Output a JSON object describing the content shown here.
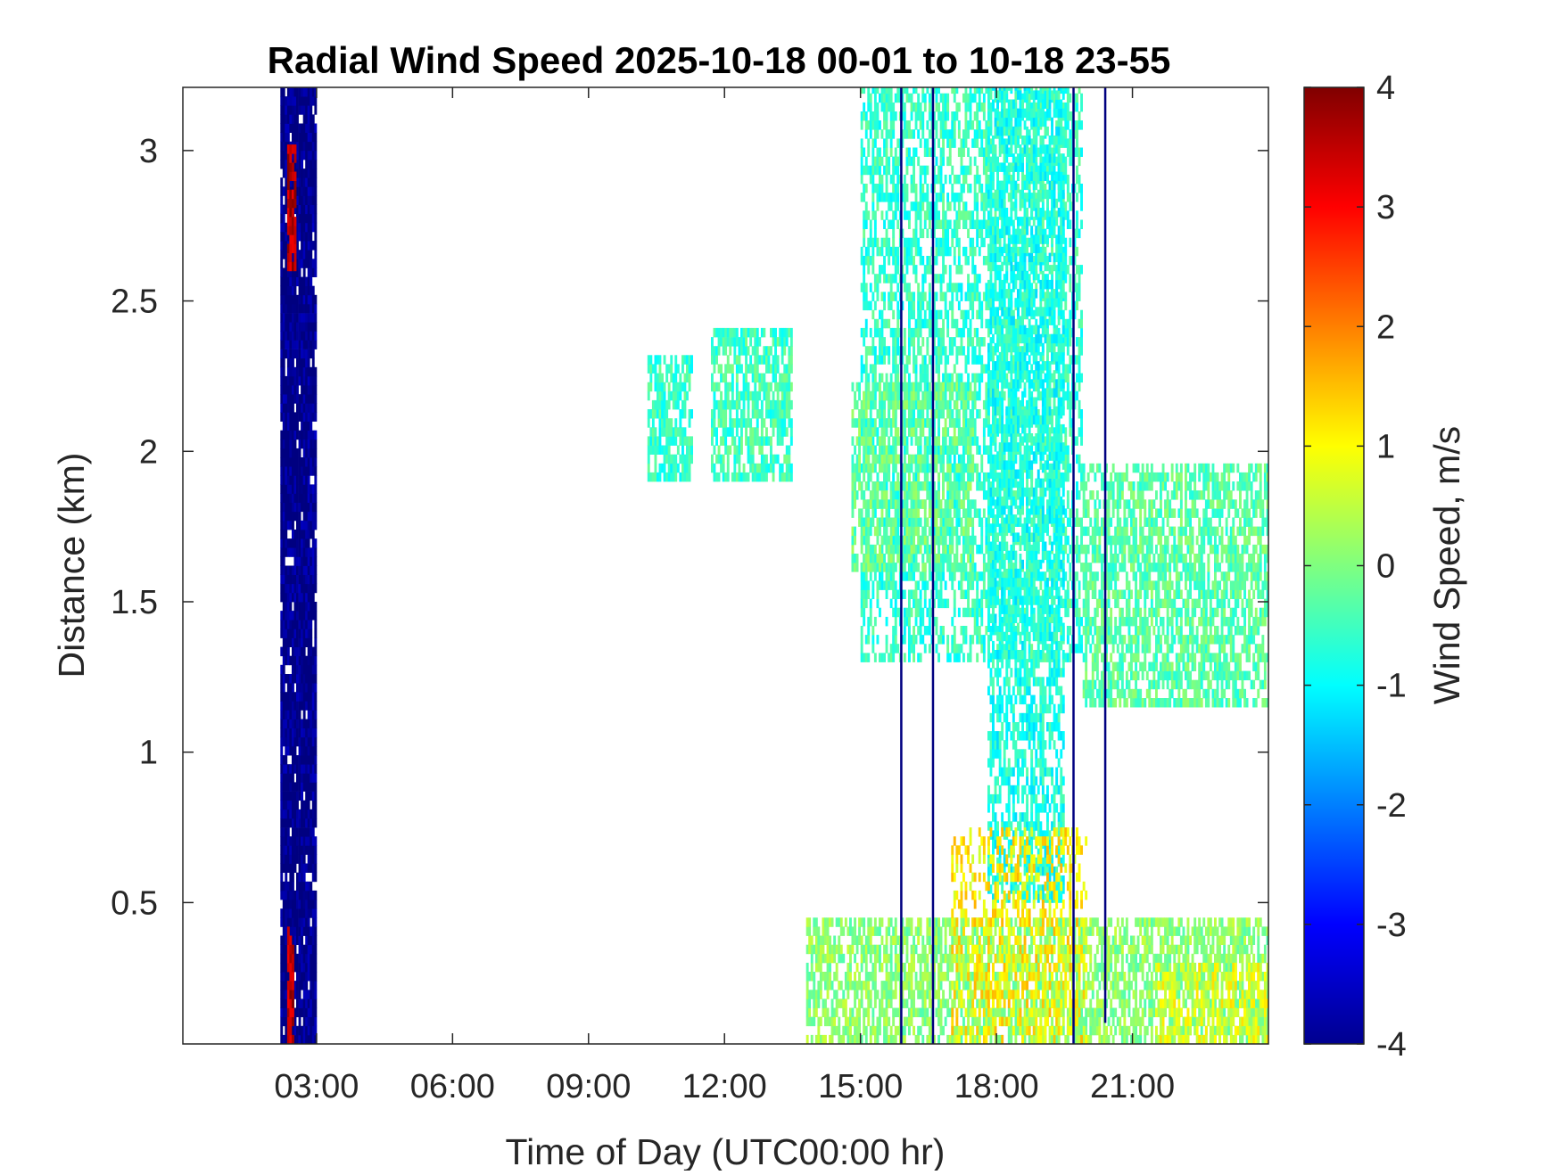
{
  "chart_data": {
    "type": "heatmap",
    "title": "Radial Wind Speed 2025-10-18 00-01 to 10-18 23-55",
    "xlabel": "Time of Day (UTC00:00 hr)",
    "ylabel": "Distance (km)",
    "colorbar_label": "Wind Speed, m/s",
    "xlim": [
      0.05,
      24.0
    ],
    "ylim": [
      0.03,
      3.21
    ],
    "clim": [
      -4,
      4
    ],
    "colormap": "jet",
    "x_ticks": [
      {
        "value": 3,
        "label": "03:00"
      },
      {
        "value": 6,
        "label": "06:00"
      },
      {
        "value": 9,
        "label": "09:00"
      },
      {
        "value": 12,
        "label": "12:00"
      },
      {
        "value": 15,
        "label": "15:00"
      },
      {
        "value": 18,
        "label": "18:00"
      },
      {
        "value": 21,
        "label": "21:00"
      }
    ],
    "y_ticks": [
      {
        "value": 0.5,
        "label": "0.5"
      },
      {
        "value": 1,
        "label": "1"
      },
      {
        "value": 1.5,
        "label": "1.5"
      },
      {
        "value": 2,
        "label": "2"
      },
      {
        "value": 2.5,
        "label": "2.5"
      },
      {
        "value": 3,
        "label": "3"
      }
    ],
    "colorbar_ticks": [
      {
        "value": 4,
        "label": "4"
      },
      {
        "value": 3,
        "label": "3"
      },
      {
        "value": 2,
        "label": "2"
      },
      {
        "value": 1,
        "label": "1"
      },
      {
        "value": 0,
        "label": "0"
      },
      {
        "value": -1,
        "label": "-1"
      },
      {
        "value": -2,
        "label": "-2"
      },
      {
        "value": -3,
        "label": "-3"
      },
      {
        "value": -4,
        "label": "-4"
      }
    ],
    "grid": false,
    "regions": [
      {
        "name": "strong negative band",
        "x": [
          2.2,
          2.85
        ],
        "y": [
          0.03,
          3.21
        ],
        "value": -4.0,
        "density": 0.95
      },
      {
        "name": "positive core",
        "x": [
          2.35,
          2.5
        ],
        "y": [
          2.6,
          3.0
        ],
        "value": 3.6,
        "density": 0.8
      },
      {
        "name": "positive core low",
        "x": [
          2.35,
          2.45
        ],
        "y": [
          0.03,
          0.4
        ],
        "value": 3.6,
        "density": 0.8
      },
      {
        "name": "thin negative line",
        "x": [
          2.9,
          2.95
        ],
        "y": [
          0.03,
          3.21
        ],
        "value": -3.9,
        "density": 0.9
      },
      {
        "name": "echo streak 1",
        "x": [
          10.3,
          11.3
        ],
        "y": [
          1.9,
          2.3
        ],
        "value": -0.6,
        "density": 0.7
      },
      {
        "name": "echo streak 2",
        "x": [
          11.7,
          13.5
        ],
        "y": [
          1.9,
          2.4
        ],
        "value": -0.5,
        "density": 0.7
      },
      {
        "name": "afternoon upper cloud",
        "x": [
          15.0,
          19.9
        ],
        "y": [
          1.3,
          3.21
        ],
        "value": -0.6,
        "density": 0.55
      },
      {
        "name": "afternoon mid layer",
        "x": [
          14.8,
          17.5
        ],
        "y": [
          1.6,
          2.2
        ],
        "value": -0.2,
        "density": 0.6
      },
      {
        "name": "central column",
        "x": [
          17.8,
          19.5
        ],
        "y": [
          0.5,
          3.21
        ],
        "value": -0.8,
        "density": 0.6
      },
      {
        "name": "evening layer",
        "x": [
          19.9,
          24.0
        ],
        "y": [
          1.15,
          1.95
        ],
        "value": -0.3,
        "density": 0.65
      },
      {
        "name": "boundary layer",
        "x": [
          13.8,
          24.0
        ],
        "y": [
          0.03,
          0.45
        ],
        "value": 0.1,
        "density": 0.65
      },
      {
        "name": "boundary layer warm",
        "x": [
          17.0,
          20.0
        ],
        "y": [
          0.03,
          0.75
        ],
        "value": 1.1,
        "density": 0.4
      },
      {
        "name": "boundary layer yellow",
        "x": [
          21.5,
          24.0
        ],
        "y": [
          0.03,
          0.3
        ],
        "value": 0.8,
        "density": 0.5
      }
    ],
    "vertical_lines": [
      {
        "x": 15.9,
        "y": [
          0.03,
          3.21
        ],
        "value": -4
      },
      {
        "x": 16.6,
        "y": [
          0.03,
          3.21
        ],
        "value": -4
      },
      {
        "x": 19.7,
        "y": [
          0.03,
          3.21
        ],
        "value": -4
      },
      {
        "x": 20.4,
        "y": [
          0.1,
          3.21
        ],
        "value": -4
      }
    ]
  }
}
